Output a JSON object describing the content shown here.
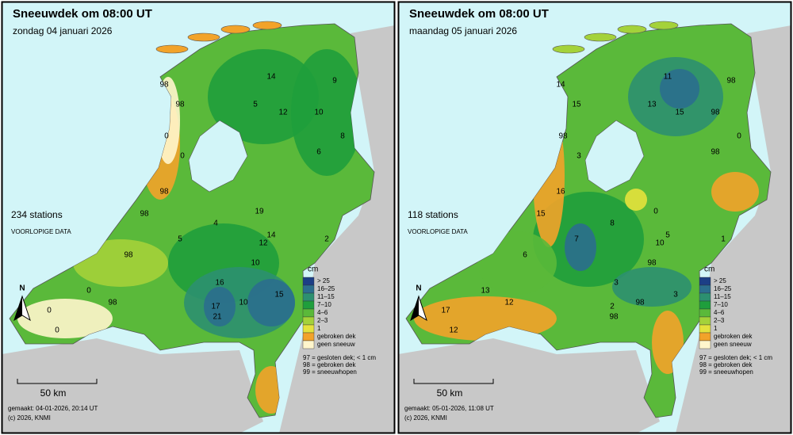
{
  "panels": [
    {
      "title": "Sneeuwdek om 08:00 UT",
      "date": "zondag 04 januari 2026",
      "stations": "234 stations",
      "note": "VOORLOPIGE DATA",
      "made": "gemaakt: 04-01-2026, 20:14 UT",
      "copyright": "(c) 2026, KNMI",
      "scale": "50 km",
      "north": "N",
      "station_values": [
        98,
        98,
        0,
        0,
        98,
        98,
        0,
        0,
        0,
        98,
        14,
        5,
        12,
        10,
        9,
        6,
        8,
        19,
        14,
        12,
        16,
        17,
        21,
        10,
        15,
        10,
        98,
        5,
        4,
        2
      ],
      "legend": {
        "unit": "cm",
        "classes": [
          {
            "label": "> 25",
            "color": "#1c3f86"
          },
          {
            "label": "16–25",
            "color": "#2b6e8e"
          },
          {
            "label": "11–15",
            "color": "#2c9070"
          },
          {
            "label": "7–10",
            "color": "#1f9e3c"
          },
          {
            "label": "4–6",
            "color": "#5ab93a"
          },
          {
            "label": "2–3",
            "color": "#a4d23a"
          },
          {
            "label": "1",
            "color": "#e4e23c"
          },
          {
            "label": "gebroken dek",
            "color": "#f2a32a"
          },
          {
            "label": "geen sneeuw",
            "color": "#fff6cc"
          }
        ],
        "codes": [
          "97 = gesloten dek; < 1 cm",
          "98 = gebroken dek",
          "99 = sneeuwhopen"
        ]
      }
    },
    {
      "title": "Sneeuwdek om 08:00 UT",
      "date": "maandag 05 januari 2026",
      "stations": "118 stations",
      "note": "VOORLOPIGE DATA",
      "made": "gemaakt: 05-01-2026, 11:08 UT",
      "copyright": "(c) 2026, KNMI",
      "scale": "50 km",
      "north": "N",
      "station_values": [
        14,
        15,
        98,
        3,
        16,
        15,
        13,
        17,
        12,
        12,
        11,
        13,
        15,
        98,
        98,
        98,
        0,
        0,
        5,
        10,
        3,
        2,
        98,
        98,
        3,
        98,
        6,
        7,
        8,
        1
      ],
      "legend": {
        "unit": "cm",
        "classes": [
          {
            "label": "> 25",
            "color": "#1c3f86"
          },
          {
            "label": "16–25",
            "color": "#2b6e8e"
          },
          {
            "label": "11–15",
            "color": "#2c9070"
          },
          {
            "label": "7–10",
            "color": "#1f9e3c"
          },
          {
            "label": "4–6",
            "color": "#5ab93a"
          },
          {
            "label": "2–3",
            "color": "#a4d23a"
          },
          {
            "label": "1",
            "color": "#e4e23c"
          },
          {
            "label": "gebroken dek",
            "color": "#f2a32a"
          },
          {
            "label": "geen sneeuw",
            "color": "#fff6cc"
          }
        ],
        "codes": [
          "97 = gesloten dek; < 1 cm",
          "98 = gebroken dek",
          "99 = sneeuwhopen"
        ]
      }
    }
  ]
}
